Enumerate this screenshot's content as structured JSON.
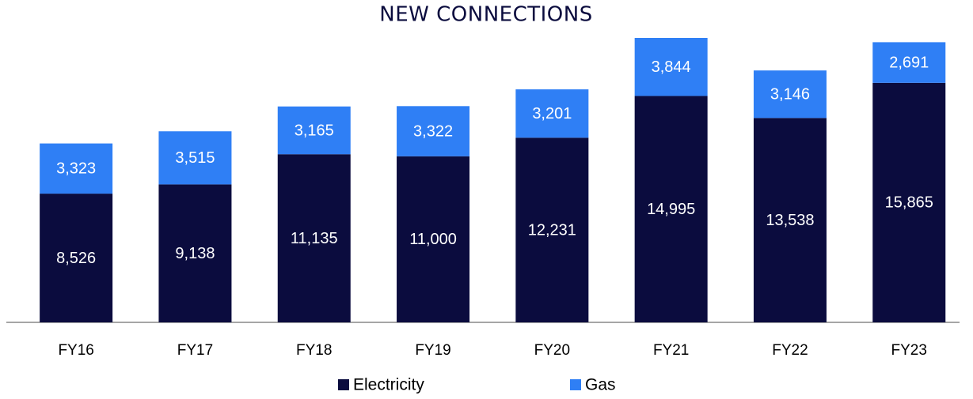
{
  "chart_data": {
    "type": "stacked_bar",
    "title": "NEW CONNECTIONS",
    "categories": [
      "FY16",
      "FY17",
      "FY18",
      "FY19",
      "FY20",
      "FY21",
      "FY22",
      "FY23"
    ],
    "series": [
      {
        "name": "Electricity",
        "color": "#0b0c3e",
        "values": [
          8526,
          9138,
          11135,
          11000,
          12231,
          14995,
          13538,
          15865
        ],
        "value_labels": [
          "8,526",
          "9,138",
          "11,135",
          "11,000",
          "12,231",
          "14,995",
          "13,538",
          "15,865"
        ]
      },
      {
        "name": "Gas",
        "color": "#2f7ff5",
        "values": [
          3323,
          3515,
          3165,
          3322,
          3201,
          3844,
          3146,
          2691
        ],
        "value_labels": [
          "3,323",
          "3,515",
          "3,165",
          "3,322",
          "3,201",
          "3,844",
          "3,146",
          "2,691"
        ]
      }
    ]
  }
}
